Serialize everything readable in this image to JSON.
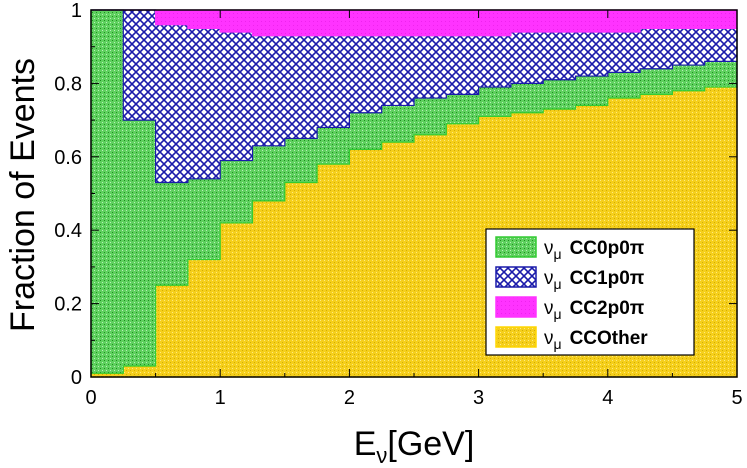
{
  "chart_data": {
    "type": "area",
    "subtype": "stacked-step-histogram",
    "title": "",
    "xlabel": "E",
    "xlabel_sub": "ν",
    "xlabel_unit": "[GeV]",
    "ylabel": "Fraction of Events",
    "xlim": [
      0,
      5
    ],
    "ylim": [
      0,
      1
    ],
    "x_ticks": [
      "0",
      "1",
      "2",
      "3",
      "4",
      "5"
    ],
    "y_ticks": [
      "0",
      "0.2",
      "0.4",
      "0.6",
      "0.8",
      "1"
    ],
    "bin_edges": [
      0,
      0.25,
      0.5,
      0.75,
      1.0,
      1.25,
      1.5,
      1.75,
      2.0,
      2.25,
      2.5,
      2.75,
      3.0,
      3.25,
      3.5,
      3.75,
      4.0,
      4.25,
      4.5,
      4.75,
      5.0
    ],
    "series": [
      {
        "name": "CCOther",
        "label_prefix": "ν",
        "label_sub": "μ",
        "label_main": "CCOther",
        "color": "#ffd700",
        "values": [
          0.01,
          0.03,
          0.25,
          0.32,
          0.42,
          0.48,
          0.53,
          0.58,
          0.62,
          0.64,
          0.66,
          0.69,
          0.71,
          0.72,
          0.73,
          0.74,
          0.76,
          0.77,
          0.78,
          0.79
        ]
      },
      {
        "name": "CC0p0π",
        "label_prefix": "ν",
        "label_sub": "μ",
        "label_main": "CC0p0π",
        "color": "#33cc33",
        "values": [
          0.99,
          0.67,
          0.28,
          0.22,
          0.17,
          0.15,
          0.12,
          0.1,
          0.1,
          0.1,
          0.1,
          0.08,
          0.08,
          0.08,
          0.08,
          0.08,
          0.07,
          0.07,
          0.07,
          0.07
        ]
      },
      {
        "name": "CC1p0π",
        "label_prefix": "ν",
        "label_sub": "μ",
        "label_main": "CC1p0π",
        "color": "#1a1aaa",
        "values": [
          0.0,
          0.3,
          0.43,
          0.41,
          0.35,
          0.3,
          0.28,
          0.25,
          0.21,
          0.19,
          0.17,
          0.16,
          0.14,
          0.14,
          0.13,
          0.12,
          0.11,
          0.11,
          0.1,
          0.09
        ]
      },
      {
        "name": "CC2p0π",
        "label_prefix": "ν",
        "label_sub": "μ",
        "label_main": "CC2p0π",
        "color": "#ff33ff",
        "values": [
          0.0,
          0.0,
          0.04,
          0.05,
          0.06,
          0.07,
          0.07,
          0.07,
          0.07,
          0.07,
          0.07,
          0.07,
          0.07,
          0.06,
          0.06,
          0.06,
          0.06,
          0.05,
          0.05,
          0.05
        ]
      }
    ],
    "legend_order": [
      "CC0p0π",
      "CC1p0π",
      "CC2p0π",
      "CCOther"
    ],
    "legend": "lower-right",
    "grid": false
  }
}
